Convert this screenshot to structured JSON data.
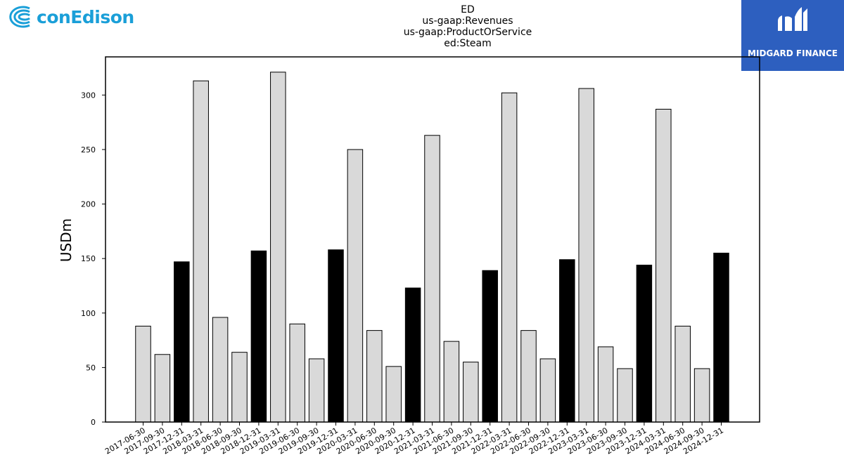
{
  "header": {
    "title_lines": [
      "ED",
      "us-gaap:Revenues",
      "us-gaap:ProductOrService",
      "ed:Steam"
    ]
  },
  "logos": {
    "left": {
      "icon": "con-edison-logo-icon",
      "text": "conEdison",
      "color": "#1a9fd8"
    },
    "right": {
      "icon": "midgard-logo-icon",
      "text": "MIDGARD FINANCE",
      "background": "#2d5fbf"
    }
  },
  "chart_data": {
    "type": "bar",
    "ylabel": "USDm",
    "xlabel": "",
    "ylim": [
      0,
      335
    ],
    "yticks": [
      0,
      50,
      100,
      150,
      200,
      250,
      300
    ],
    "grid": false,
    "categories": [
      "2017-06-30",
      "2017-09-30",
      "2017-12-31",
      "2018-03-31",
      "2018-06-30",
      "2018-09-30",
      "2018-12-31",
      "2019-03-31",
      "2019-06-30",
      "2019-09-30",
      "2019-12-31",
      "2020-03-31",
      "2020-06-30",
      "2020-09-30",
      "2020-12-31",
      "2021-03-31",
      "2021-06-30",
      "2021-09-30",
      "2021-12-31",
      "2022-03-31",
      "2022-06-30",
      "2022-09-30",
      "2022-12-31",
      "2023-03-31",
      "2023-06-30",
      "2023-09-30",
      "2023-12-31",
      "2024-03-31",
      "2024-06-30",
      "2024-09-30",
      "2024-12-31"
    ],
    "values": [
      88,
      62,
      147,
      313,
      96,
      64,
      157,
      321,
      90,
      58,
      158,
      250,
      84,
      51,
      123,
      263,
      74,
      55,
      139,
      302,
      84,
      58,
      149,
      306,
      69,
      49,
      144,
      287,
      88,
      49,
      155
    ],
    "colors": {
      "quarter": "#d9d9d9",
      "year_end": "#000000",
      "edge": "#000000"
    }
  }
}
